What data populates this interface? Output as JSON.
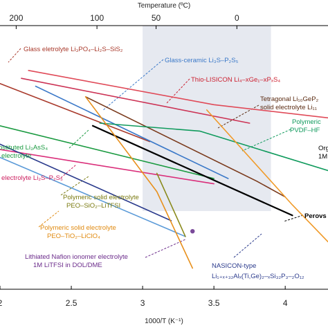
{
  "chart_data": {
    "type": "line",
    "title": "",
    "xlabel": "1000/T (K⁻¹)",
    "top_axis_label": "Temperature (ºC)",
    "ylabel": "",
    "xlim": [
      2.0,
      4.3
    ],
    "ylim": [
      0,
      1
    ],
    "y_units": "unlabeled (normalized vertical position)",
    "grid": false,
    "x_ticks": [
      2.0,
      2.5,
      3.0,
      3.5,
      4.0
    ],
    "x_tick_labels": [
      "2",
      "2.5",
      "3",
      "3.5",
      "4"
    ],
    "top_ticks_celsius": [
      200,
      100,
      50,
      0
    ],
    "top_tick_labels": [
      "200",
      "100",
      "50",
      "0"
    ],
    "shaded_region_x": [
      3.0,
      3.9
    ],
    "shaded_color": "#e6e9f0",
    "series": [
      {
        "name": "",
        "color": "#a93a2c",
        "x": [
          2.0,
          3.05
        ],
        "y": [
          0.78,
          0.56
        ]
      },
      {
        "name": "",
        "color": "#cc3355",
        "x": [
          2.15,
          3.75
        ],
        "y": [
          0.8,
          0.63
        ]
      },
      {
        "name": "",
        "color": "#7a3a1c",
        "x": [
          2.6,
          3.8,
          4.0
        ],
        "y": [
          0.73,
          0.41,
          0.35
        ]
      },
      {
        "name": "",
        "color": "#3a78c8",
        "x": [
          2.25,
          3.6
        ],
        "y": [
          0.77,
          0.42
        ]
      },
      {
        "name": "",
        "color": "#e04a58",
        "x": [
          2.2,
          3.5,
          4.3
        ],
        "y": [
          0.83,
          0.7,
          0.65
        ]
      },
      {
        "name": "",
        "color": "#0f9a5c",
        "x": [
          2.7,
          3.4,
          3.7,
          4.3
        ],
        "y": [
          0.63,
          0.6,
          0.55,
          0.45
        ]
      },
      {
        "name": "",
        "color": "#1a9a40",
        "x": [
          2.0,
          3.5
        ],
        "y": [
          0.62,
          0.42
        ]
      },
      {
        "name": "",
        "color": "#da2e7a",
        "x": [
          2.0,
          3.5
        ],
        "y": [
          0.53,
          0.4
        ]
      },
      {
        "name": "",
        "color": "#2a3a8c",
        "x": [
          2.0,
          3.2
        ],
        "y": [
          0.55,
          0.26
        ]
      },
      {
        "name": "",
        "color": "#5a9ad8",
        "x": [
          2.0,
          3.3
        ],
        "y": [
          0.5,
          0.2
        ]
      },
      {
        "name": "",
        "color": "#000000",
        "x": [
          2.65,
          4.05
        ],
        "y": [
          0.62,
          0.28
        ]
      },
      {
        "name": "",
        "color": "#8a8a1c",
        "x": [
          3.1,
          3.3
        ],
        "y": [
          0.44,
          0.2
        ]
      },
      {
        "name": "",
        "color": "#e8901c",
        "x": [
          2.6,
          3.1,
          3.35
        ],
        "y": [
          0.73,
          0.37,
          0.08
        ]
      },
      {
        "name": "",
        "color": "#f09a28",
        "x": [
          3.45,
          4.05,
          4.3
        ],
        "y": [
          0.68,
          0.32,
          0.18
        ]
      },
      {
        "name": "",
        "color": "#7a4a9a",
        "x": [
          3.35
        ],
        "y": [
          0.22
        ]
      }
    ],
    "annotations": [
      {
        "text": "Glass eletrolyte Li₃PO₄–Li₂S–SiS₂",
        "color": "#a93a2c"
      },
      {
        "text": "Glass-ceramic Li₃S–P₂S₅",
        "color": "#3a78c8"
      },
      {
        "text": "Thio-LISICON Li₄–xGe₁–xPₓS₄",
        "color": "#cc2030"
      },
      {
        "text": "Tetragonal Li₁₀GeP₂",
        "color": "#5a2a10"
      },
      {
        "text": "solid electrolyte Li₁₁",
        "color": "#5a2a10"
      },
      {
        "text": "Polymeric",
        "color": "#0f9a5c"
      },
      {
        "text": "PVDF–HF",
        "color": "#0f9a5c"
      },
      {
        "text": "Org",
        "color": "#000000"
      },
      {
        "text": "1M",
        "color": "#000000"
      },
      {
        "text": "bstituted Li₃AsS₄",
        "color": "#1a9a40"
      },
      {
        "text": "electrolyte",
        "color": "#1a9a40"
      },
      {
        "text": "electrolyte Li₂S–P₂S₅",
        "color": "#cc2060"
      },
      {
        "text": "Polymeric solid electrolyte",
        "color": "#7a7a10"
      },
      {
        "text": "PEO–SiO₂–LiTFSI",
        "color": "#7a7a10"
      },
      {
        "text": "Polymeric solid electrolyte",
        "color": "#e08a10"
      },
      {
        "text": "PEO–TiO₂–LiClO₄",
        "color": "#e08a10"
      },
      {
        "text": "Lithiated Nafion ionomer electrolyte",
        "color": "#6a2a8a"
      },
      {
        "text": "1M LiTFSI in DOL/DME",
        "color": "#6a2a8a"
      },
      {
        "text": "Perovs",
        "color": "#000000"
      },
      {
        "text": "NASICON-type",
        "color": "#2a3a8c"
      },
      {
        "text": "Li₁₊ₓ₊₃₂Alₓ(Ti,Ge)₂–ₓSi₃₂P₃–₂O₁₂",
        "color": "#2a3a8c"
      }
    ]
  }
}
